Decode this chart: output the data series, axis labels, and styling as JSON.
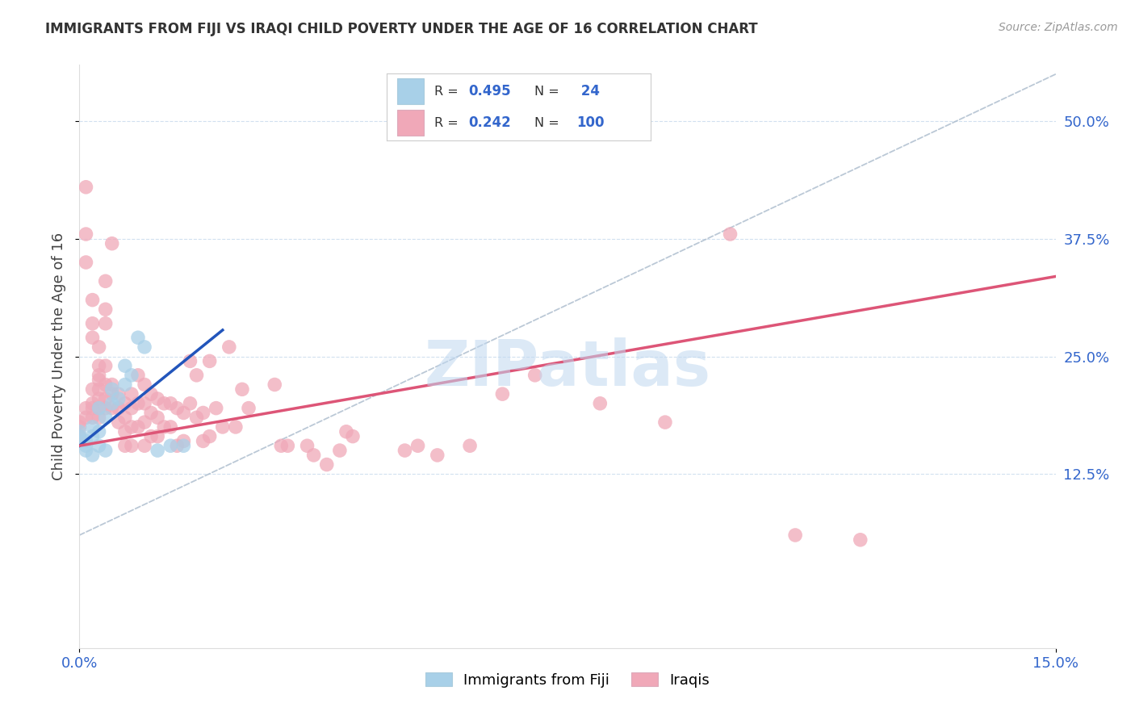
{
  "title": "IMMIGRANTS FROM FIJI VS IRAQI CHILD POVERTY UNDER THE AGE OF 16 CORRELATION CHART",
  "source": "Source: ZipAtlas.com",
  "ylabel": "Child Poverty Under the Age of 16",
  "fiji_R": 0.495,
  "fiji_N": 24,
  "iraqi_R": 0.242,
  "iraqi_N": 100,
  "fiji_color": "#a8d0e8",
  "iraqi_color": "#f0a8b8",
  "fiji_line_color": "#2255bb",
  "iraqi_line_color": "#dd5577",
  "trend_dashed_color": "#aabbcc",
  "background_color": "#ffffff",
  "xlim": [
    0.0,
    0.15
  ],
  "ylim": [
    -0.06,
    0.56
  ],
  "ytick_vals": [
    0.125,
    0.25,
    0.375,
    0.5
  ],
  "ytick_labels": [
    "12.5%",
    "25.0%",
    "37.5%",
    "50.0%"
  ],
  "xtick_vals": [
    0.0,
    0.15
  ],
  "xtick_labels": [
    "0.0%",
    "15.0%"
  ],
  "fiji_scatter": [
    [
      0.0,
      0.17
    ],
    [
      0.0,
      0.165
    ],
    [
      0.001,
      0.155
    ],
    [
      0.001,
      0.16
    ],
    [
      0.001,
      0.15
    ],
    [
      0.002,
      0.145
    ],
    [
      0.002,
      0.165
    ],
    [
      0.002,
      0.175
    ],
    [
      0.003,
      0.155
    ],
    [
      0.003,
      0.17
    ],
    [
      0.003,
      0.195
    ],
    [
      0.004,
      0.185
    ],
    [
      0.004,
      0.15
    ],
    [
      0.005,
      0.2
    ],
    [
      0.005,
      0.215
    ],
    [
      0.006,
      0.205
    ],
    [
      0.007,
      0.22
    ],
    [
      0.007,
      0.24
    ],
    [
      0.008,
      0.23
    ],
    [
      0.009,
      0.27
    ],
    [
      0.01,
      0.26
    ],
    [
      0.012,
      0.15
    ],
    [
      0.014,
      0.155
    ],
    [
      0.016,
      0.155
    ]
  ],
  "iraqi_scatter": [
    [
      0.0,
      0.165
    ],
    [
      0.0,
      0.18
    ],
    [
      0.0,
      0.175
    ],
    [
      0.001,
      0.43
    ],
    [
      0.001,
      0.38
    ],
    [
      0.001,
      0.35
    ],
    [
      0.001,
      0.195
    ],
    [
      0.001,
      0.185
    ],
    [
      0.002,
      0.31
    ],
    [
      0.002,
      0.285
    ],
    [
      0.002,
      0.27
    ],
    [
      0.002,
      0.215
    ],
    [
      0.002,
      0.2
    ],
    [
      0.002,
      0.195
    ],
    [
      0.002,
      0.185
    ],
    [
      0.003,
      0.26
    ],
    [
      0.003,
      0.24
    ],
    [
      0.003,
      0.23
    ],
    [
      0.003,
      0.225
    ],
    [
      0.003,
      0.215
    ],
    [
      0.003,
      0.205
    ],
    [
      0.003,
      0.195
    ],
    [
      0.003,
      0.185
    ],
    [
      0.004,
      0.33
    ],
    [
      0.004,
      0.3
    ],
    [
      0.004,
      0.285
    ],
    [
      0.004,
      0.24
    ],
    [
      0.004,
      0.22
    ],
    [
      0.004,
      0.205
    ],
    [
      0.004,
      0.195
    ],
    [
      0.005,
      0.37
    ],
    [
      0.005,
      0.22
    ],
    [
      0.005,
      0.21
    ],
    [
      0.005,
      0.195
    ],
    [
      0.006,
      0.21
    ],
    [
      0.006,
      0.195
    ],
    [
      0.006,
      0.18
    ],
    [
      0.007,
      0.2
    ],
    [
      0.007,
      0.185
    ],
    [
      0.007,
      0.17
    ],
    [
      0.007,
      0.155
    ],
    [
      0.008,
      0.21
    ],
    [
      0.008,
      0.195
    ],
    [
      0.008,
      0.175
    ],
    [
      0.008,
      0.155
    ],
    [
      0.009,
      0.23
    ],
    [
      0.009,
      0.2
    ],
    [
      0.009,
      0.175
    ],
    [
      0.01,
      0.22
    ],
    [
      0.01,
      0.2
    ],
    [
      0.01,
      0.18
    ],
    [
      0.01,
      0.155
    ],
    [
      0.011,
      0.21
    ],
    [
      0.011,
      0.19
    ],
    [
      0.011,
      0.165
    ],
    [
      0.012,
      0.205
    ],
    [
      0.012,
      0.185
    ],
    [
      0.012,
      0.165
    ],
    [
      0.013,
      0.2
    ],
    [
      0.013,
      0.175
    ],
    [
      0.014,
      0.2
    ],
    [
      0.014,
      0.175
    ],
    [
      0.015,
      0.195
    ],
    [
      0.015,
      0.155
    ],
    [
      0.016,
      0.19
    ],
    [
      0.016,
      0.16
    ],
    [
      0.017,
      0.245
    ],
    [
      0.017,
      0.2
    ],
    [
      0.018,
      0.23
    ],
    [
      0.018,
      0.185
    ],
    [
      0.019,
      0.19
    ],
    [
      0.019,
      0.16
    ],
    [
      0.02,
      0.245
    ],
    [
      0.02,
      0.165
    ],
    [
      0.021,
      0.195
    ],
    [
      0.022,
      0.175
    ],
    [
      0.023,
      0.26
    ],
    [
      0.024,
      0.175
    ],
    [
      0.025,
      0.215
    ],
    [
      0.026,
      0.195
    ],
    [
      0.03,
      0.22
    ],
    [
      0.031,
      0.155
    ],
    [
      0.032,
      0.155
    ],
    [
      0.035,
      0.155
    ],
    [
      0.036,
      0.145
    ],
    [
      0.038,
      0.135
    ],
    [
      0.04,
      0.15
    ],
    [
      0.041,
      0.17
    ],
    [
      0.042,
      0.165
    ],
    [
      0.05,
      0.15
    ],
    [
      0.052,
      0.155
    ],
    [
      0.055,
      0.145
    ],
    [
      0.06,
      0.155
    ],
    [
      0.065,
      0.21
    ],
    [
      0.07,
      0.23
    ],
    [
      0.08,
      0.2
    ],
    [
      0.09,
      0.18
    ],
    [
      0.1,
      0.38
    ],
    [
      0.11,
      0.06
    ],
    [
      0.12,
      0.055
    ]
  ]
}
